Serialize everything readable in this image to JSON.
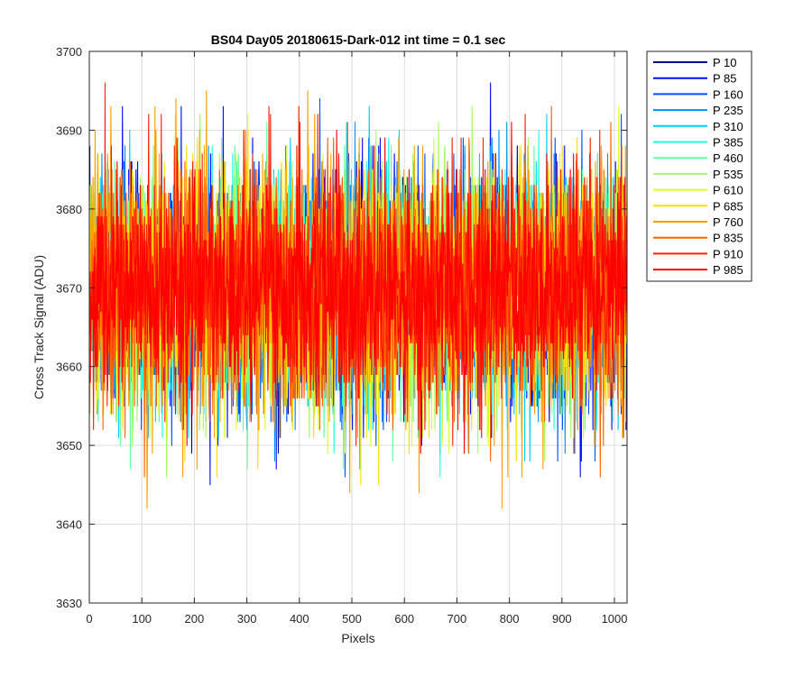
{
  "chart_data": {
    "type": "line",
    "title": "BS04 Day05 20180615-Dark-012 int time = 0.1 sec",
    "xlabel": "Pixels",
    "ylabel": "Cross Track Signal (ADU)",
    "xlim": [
      0,
      1024
    ],
    "ylim": [
      3630,
      3700
    ],
    "xticks": [
      0,
      100,
      200,
      300,
      400,
      500,
      600,
      700,
      800,
      900,
      1000
    ],
    "yticks": [
      3630,
      3640,
      3650,
      3660,
      3670,
      3680,
      3690,
      3700
    ],
    "grid": true,
    "legend_position": "outside-top-right",
    "pixel_count": 1024,
    "series": [
      {
        "name": "P 10",
        "color": "#00008F",
        "mean": 3670,
        "min": 3649,
        "max": 3691
      },
      {
        "name": "P 85",
        "color": "#0010FF",
        "mean": 3670,
        "min": 3645,
        "max": 3696
      },
      {
        "name": "P 160",
        "color": "#0050FF",
        "mean": 3670,
        "min": 3646,
        "max": 3699
      },
      {
        "name": "P 235",
        "color": "#0090FF",
        "mean": 3670,
        "min": 3647,
        "max": 3693
      },
      {
        "name": "P 310",
        "color": "#00D0FF",
        "mean": 3670,
        "min": 3644,
        "max": 3693
      },
      {
        "name": "P 385",
        "color": "#20FFDF",
        "mean": 3670,
        "min": 3644,
        "max": 3692
      },
      {
        "name": "P 460",
        "color": "#60FF9F",
        "mean": 3670,
        "min": 3647,
        "max": 3692
      },
      {
        "name": "P 535",
        "color": "#9FFF60",
        "mean": 3670,
        "min": 3646,
        "max": 3693
      },
      {
        "name": "P 610",
        "color": "#DFFF20",
        "mean": 3670,
        "min": 3639,
        "max": 3693
      },
      {
        "name": "P 685",
        "color": "#FFDF00",
        "mean": 3670,
        "min": 3645,
        "max": 3695
      },
      {
        "name": "P 760",
        "color": "#FFA000",
        "mean": 3670,
        "min": 3642,
        "max": 3697
      },
      {
        "name": "P 835",
        "color": "#FF6000",
        "mean": 3670,
        "min": 3644,
        "max": 3697
      },
      {
        "name": "P 910",
        "color": "#FF2000",
        "mean": 3670,
        "min": 3648,
        "max": 3696
      },
      {
        "name": "P 985",
        "color": "#FF0000",
        "mean": 3670,
        "min": 3649,
        "max": 3700
      }
    ]
  }
}
